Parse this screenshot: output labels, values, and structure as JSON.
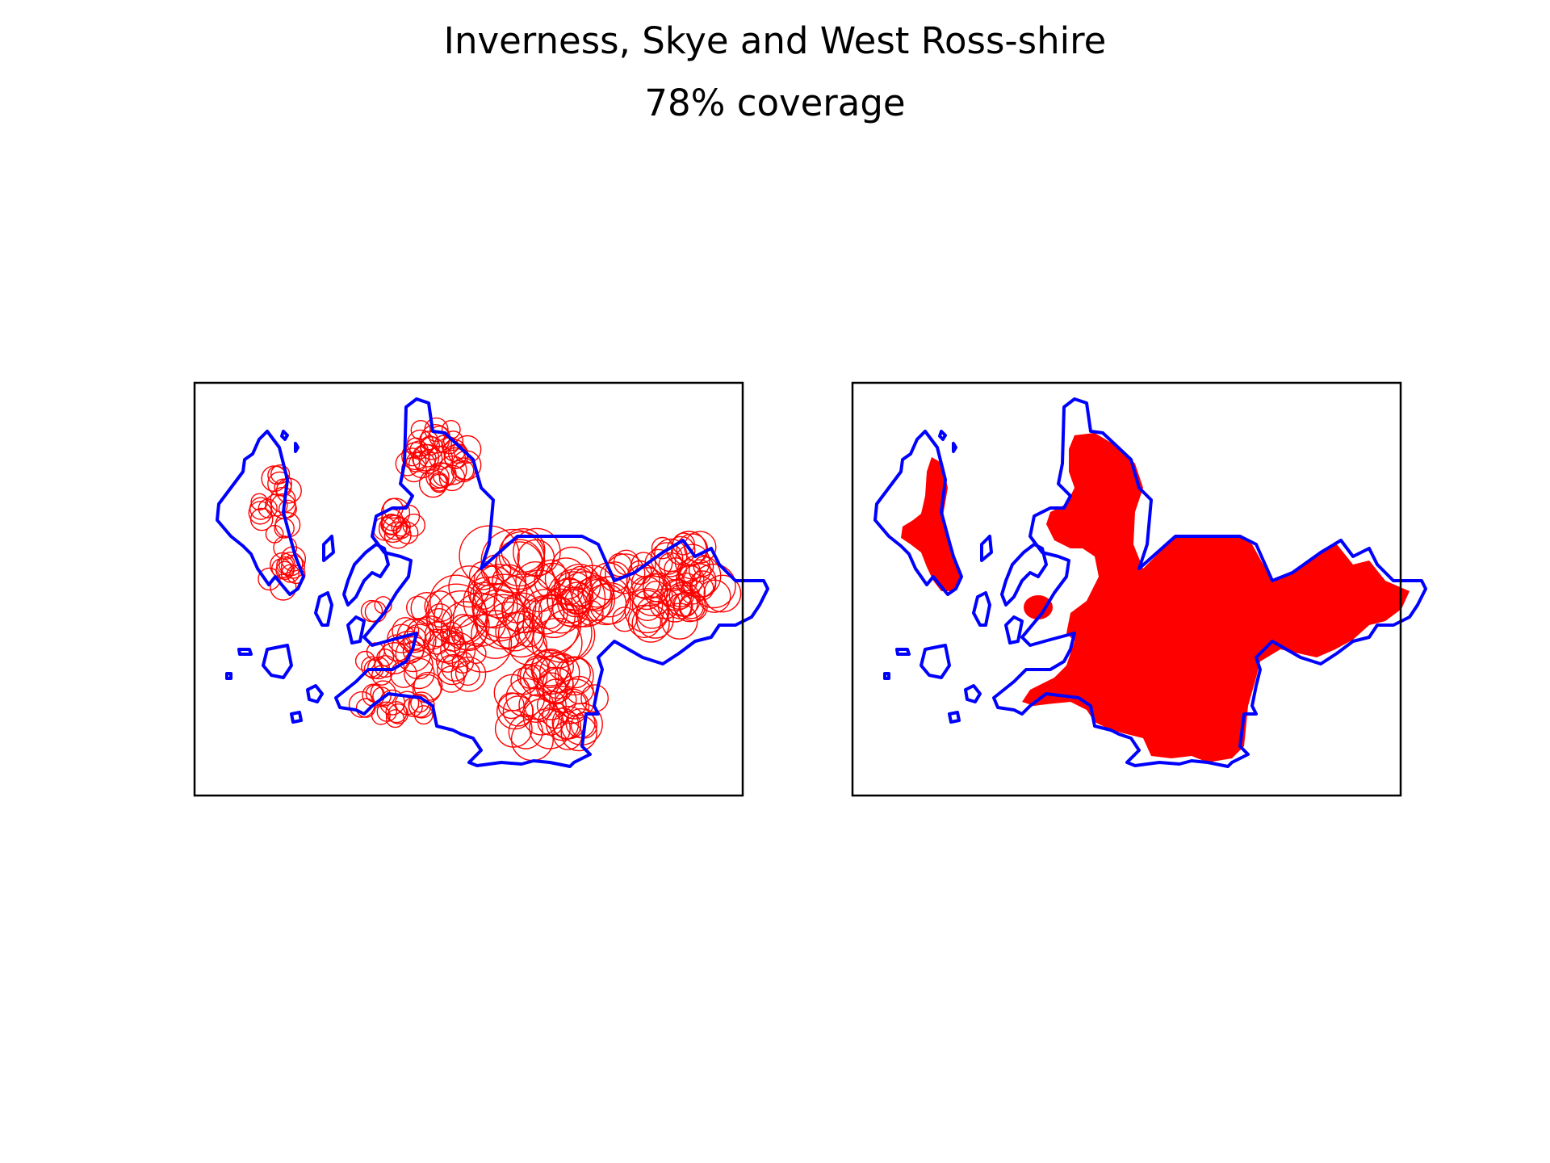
{
  "figure": {
    "title": "Inverness, Skye and West Ross-shire",
    "subtitle": "78% coverage"
  },
  "colors": {
    "boundary": "#0000ff",
    "coverage": "#ff0000",
    "frame": "#000000",
    "background": "#ffffff"
  },
  "panels": [
    {
      "name": "left",
      "style": "circle-outlines"
    },
    {
      "name": "right",
      "style": "filled-coverage"
    }
  ]
}
